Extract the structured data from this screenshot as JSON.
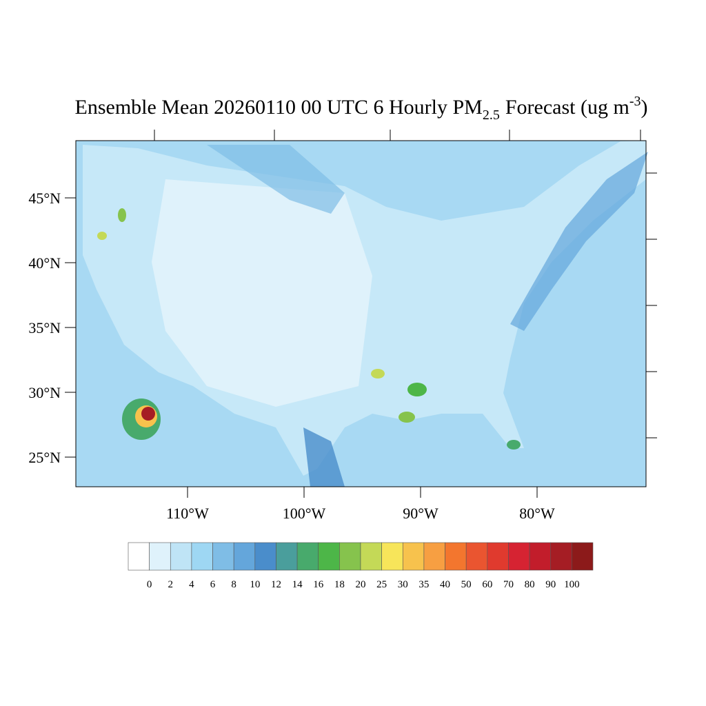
{
  "title": {
    "main": "Ensemble Mean 20260110 00 UTC 6 Hourly PM",
    "sub": "2.5",
    "rest": "Forecast (ug m",
    "sup": "-3",
    "end": ")"
  },
  "lat_ticks": [
    {
      "value": 45,
      "label": "45°N"
    },
    {
      "value": 40,
      "label": "40°N"
    },
    {
      "value": 35,
      "label": "35°N"
    },
    {
      "value": 30,
      "label": "30°N"
    },
    {
      "value": 25,
      "label": "25°N"
    }
  ],
  "lon_ticks": [
    {
      "value": -110,
      "label": "110°W"
    },
    {
      "value": -100,
      "label": "100°W"
    },
    {
      "value": -90,
      "label": "90°W"
    },
    {
      "value": -80,
      "label": "80°W"
    }
  ],
  "colorbar": {
    "levels": [
      0,
      2,
      4,
      6,
      8,
      10,
      12,
      14,
      16,
      18,
      20,
      25,
      30,
      35,
      40,
      50,
      60,
      70,
      80,
      90,
      100
    ],
    "colors": [
      "#ffffff",
      "#dff2fb",
      "#bfe4f6",
      "#9ed7f3",
      "#7fbde6",
      "#64a6db",
      "#4a8dcb",
      "#4a9e9c",
      "#48aa6c",
      "#4db648",
      "#86c34d",
      "#c4d957",
      "#f7e55a",
      "#f7c24d",
      "#f79f42",
      "#f3762e",
      "#ea5530",
      "#e03a2e",
      "#d62332",
      "#c21d2b",
      "#a51d24",
      "#8c1a1a"
    ]
  }
}
